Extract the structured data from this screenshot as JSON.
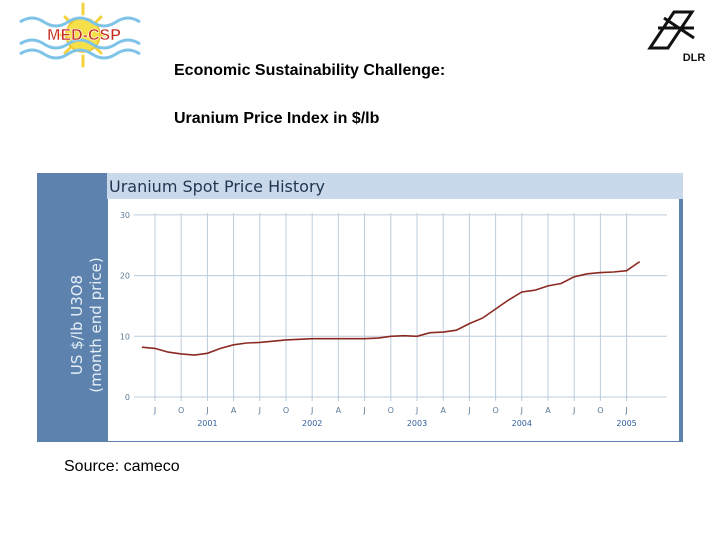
{
  "logos": {
    "left_text": "MED-CSP",
    "right_text": "DLR"
  },
  "slide": {
    "heading_line1": "Economic Sustainability Challenge:",
    "heading_line2": "Uranium Price Index in $/lb",
    "source": "Source: cameco"
  },
  "colors": {
    "panel_bg": "#5c82ad",
    "title_band": "#c9d8ea",
    "plot_bg": "#ffffff",
    "grid": "#bcccdc",
    "line": "#8b2a22",
    "axis_text": "#5a7a9a",
    "ylabel_text": "#e6eef7",
    "year_text": "#2f5e9c"
  },
  "chart_data": {
    "type": "line",
    "title": "Uranium Spot Price History",
    "ylabel_line1": "US $/lb U3O8",
    "ylabel_line2": "(month end price)",
    "ylim": [
      0,
      30
    ],
    "yticks": [
      0,
      10,
      20,
      30
    ],
    "grid": true,
    "month_ticks": [
      "J",
      "O",
      "J",
      "A",
      "J",
      "O",
      "J",
      "A",
      "J",
      "O",
      "J",
      "A",
      "J",
      "O",
      "J",
      "A",
      "J",
      "O",
      "J"
    ],
    "year_labels": [
      {
        "tick_index": 2,
        "label": "2001"
      },
      {
        "tick_index": 6,
        "label": "2002"
      },
      {
        "tick_index": 10,
        "label": "2003"
      },
      {
        "tick_index": 14,
        "label": "2004"
      },
      {
        "tick_index": 18,
        "label": "2005"
      }
    ],
    "series": [
      {
        "x": [
          -0.5,
          0,
          0.5,
          1,
          1.5,
          2,
          2.5,
          3,
          3.5,
          4,
          4.5,
          5,
          5.5,
          6,
          6.5,
          7,
          7.5,
          8,
          8.5,
          9,
          9.5,
          10,
          10.5,
          11,
          11.5,
          12,
          12.5,
          13,
          13.5,
          14,
          14.5,
          15,
          15.5,
          16,
          16.5,
          17,
          17.5,
          18,
          18.5
        ],
        "y": [
          8.2,
          8.0,
          7.4,
          7.1,
          6.9,
          7.2,
          8.0,
          8.6,
          8.9,
          9.0,
          9.2,
          9.4,
          9.5,
          9.6,
          9.6,
          9.6,
          9.6,
          9.6,
          9.7,
          10.0,
          10.1,
          10.0,
          10.6,
          10.7,
          11.0,
          12.1,
          13.0,
          14.5,
          16.0,
          17.3,
          17.6,
          18.3,
          18.7,
          19.8,
          20.3,
          20.5,
          20.6,
          20.8,
          22.3
        ]
      }
    ]
  }
}
